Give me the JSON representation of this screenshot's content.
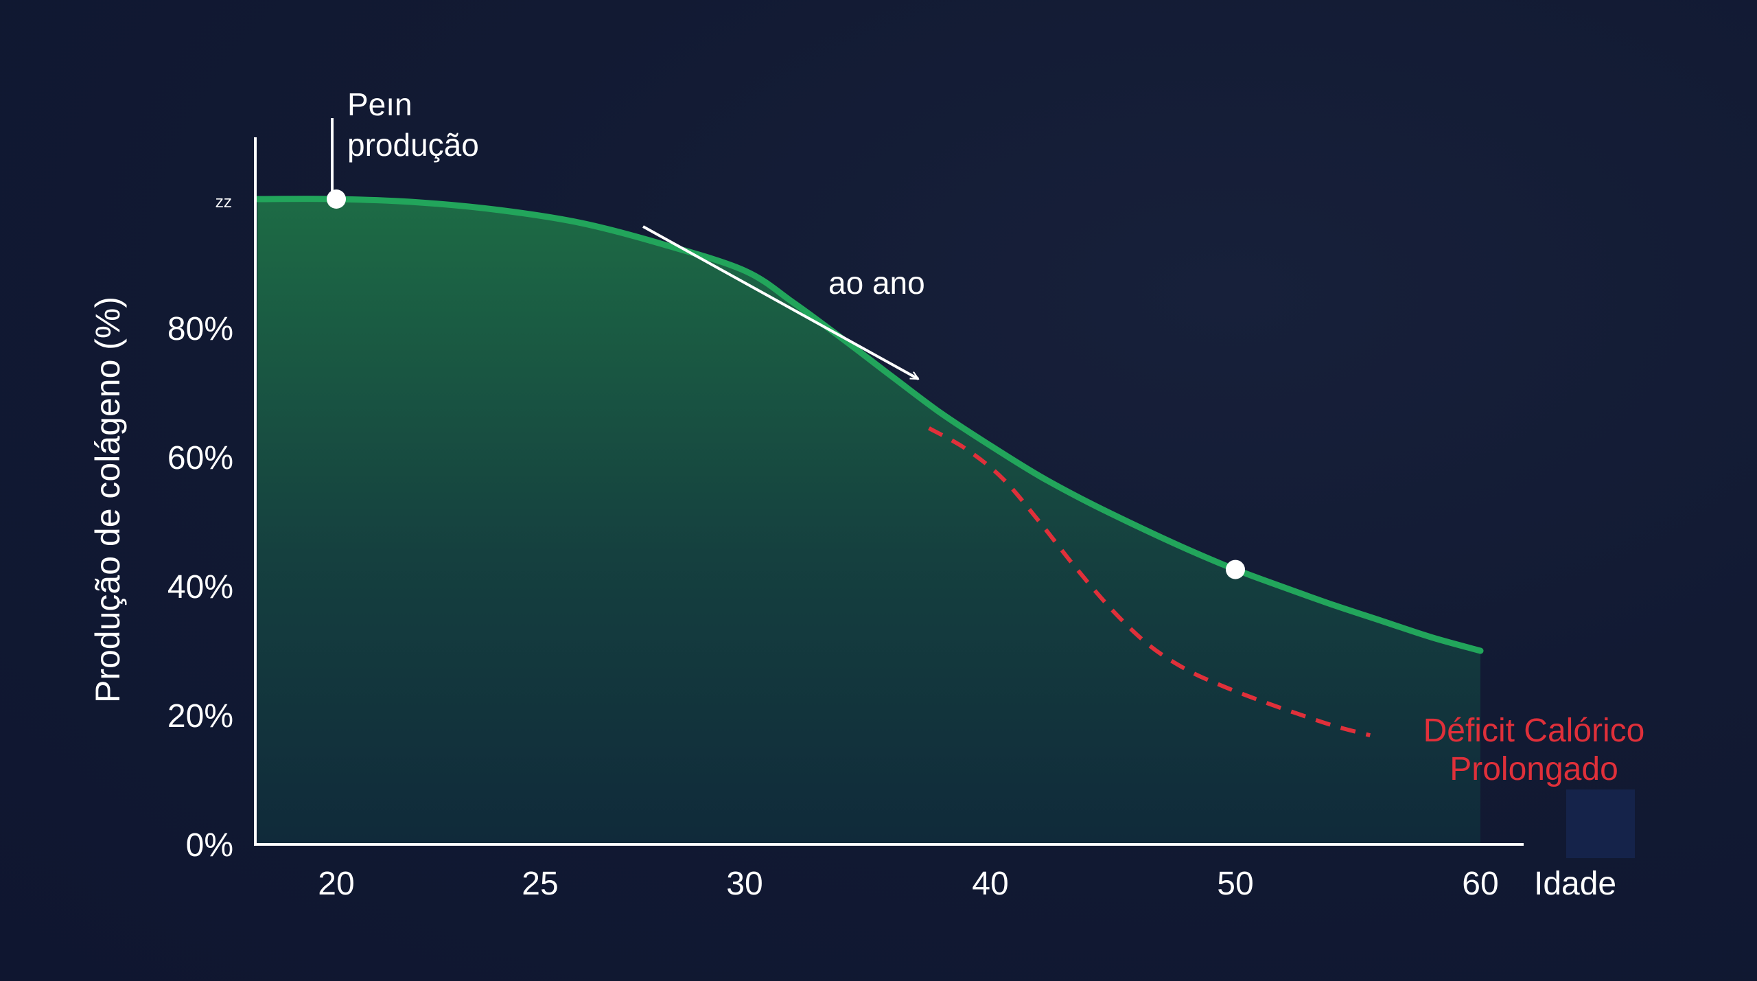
{
  "chart_data": {
    "type": "area",
    "title": "",
    "ylabel": "Produção de colágeno (%)",
    "xlabel": "Idade",
    "x_ticks": [
      "20",
      "25",
      "30",
      "40",
      "50",
      "60"
    ],
    "y_ticks": [
      "0%",
      "20%",
      "40%",
      "60%",
      "80%"
    ],
    "y_top_glyph": "ᶻᶻ",
    "ylim": [
      0,
      100
    ],
    "grid": false,
    "series": [
      {
        "name": "",
        "color": "#22a55b",
        "style": "solid",
        "x": [
          18,
          20,
          22,
          24,
          26,
          28,
          30,
          32,
          34,
          36,
          38,
          40,
          42,
          44,
          46,
          48,
          50,
          52,
          54,
          56,
          58,
          60
        ],
        "values": [
          100,
          100,
          99.5,
          98.3,
          96.3,
          93.0,
          88.9,
          83.9,
          78.3,
          72.5,
          66.8,
          61.8,
          57.1,
          53.0,
          49.3,
          45.8,
          42.6,
          39.8,
          37.1,
          34.6,
          32.1,
          30.0
        ]
      },
      {
        "name": "Déficit Calórico Prolongado",
        "color": "#e0303a",
        "style": "dashed",
        "x": [
          37.5,
          39,
          40.5,
          42,
          43.5,
          45,
          46.5,
          48,
          49.5,
          51,
          52.5,
          54,
          55.5
        ],
        "values": [
          64.5,
          61.3,
          56.7,
          50.0,
          42.8,
          36.2,
          30.8,
          27.1,
          24.5,
          22.3,
          20.3,
          18.4,
          16.9
        ]
      }
    ],
    "markers": [
      {
        "x": 20,
        "y": 100
      },
      {
        "x": 50,
        "y": 42.6
      }
    ],
    "annotations": {
      "peak_line1": "Peın",
      "peak_line2": "produção",
      "arrow_label": "ao ano",
      "deficit_line1": "Déficit Calórico",
      "deficit_line2": "Prolongado"
    },
    "colors": {
      "background": "#121a33",
      "axis": "#ffffff",
      "area_top": "#1d6b45",
      "area_bottom": "#102a3a",
      "marker": "#ffffff"
    }
  }
}
